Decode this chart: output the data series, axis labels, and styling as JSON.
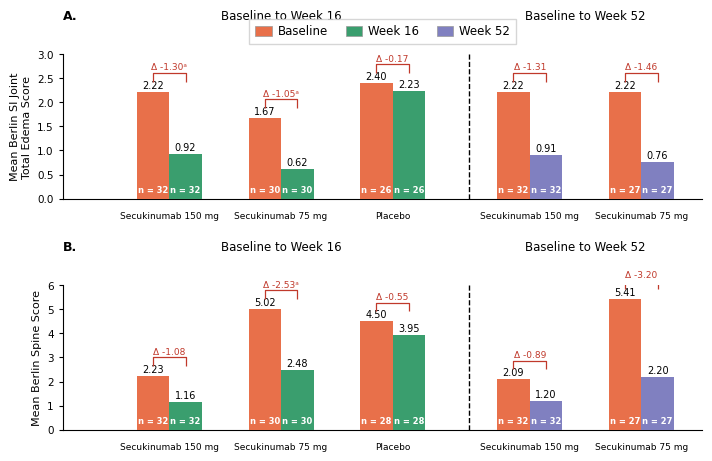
{
  "panel_A": {
    "title_left": "Baseline to Week 16",
    "title_right": "Baseline to Week 52",
    "ylabel": "Mean Berlin SI Joint\nTotal Edema Score",
    "ylim": [
      0,
      3.0
    ],
    "yticks": [
      0.0,
      0.5,
      1.0,
      1.5,
      2.0,
      2.5,
      3.0
    ],
    "groups_left": [
      {
        "label": "Secukinumab 150 mg",
        "baseline": 2.22,
        "week_val": 0.92,
        "n_baseline": 32,
        "n_week": 32,
        "week_color": "week16",
        "delta": "Δ -1.30ᵃ",
        "delta_sig": true
      },
      {
        "label": "Secukinumab 75 mg",
        "baseline": 1.67,
        "week_val": 0.62,
        "n_baseline": 30,
        "n_week": 30,
        "week_color": "week16",
        "delta": "Δ -1.05ᵃ",
        "delta_sig": true
      },
      {
        "label": "Placebo",
        "baseline": 2.4,
        "week_val": 2.23,
        "n_baseline": 26,
        "n_week": 26,
        "week_color": "week16",
        "delta": "Δ -0.17",
        "delta_sig": false
      }
    ],
    "groups_right": [
      {
        "label": "Secukinumab 150 mg",
        "baseline": 2.22,
        "week_val": 0.91,
        "n_baseline": 32,
        "n_week": 32,
        "week_color": "week52",
        "delta": "Δ -1.31",
        "delta_sig": false
      },
      {
        "label": "Secukinumab 75 mg",
        "baseline": 2.22,
        "week_val": 0.76,
        "n_baseline": 27,
        "n_week": 27,
        "week_color": "week52",
        "delta": "Δ -1.46",
        "delta_sig": false
      }
    ]
  },
  "panel_B": {
    "title_left": "Baseline to Week 16",
    "title_right": "Baseline to Week 52",
    "ylabel": "Mean Berlin Spine Score",
    "ylim": [
      0,
      6.0
    ],
    "yticks": [
      0,
      1,
      2,
      3,
      4,
      5,
      6
    ],
    "groups_left": [
      {
        "label": "Secukinumab 150 mg",
        "baseline": 2.23,
        "week_val": 1.16,
        "n_baseline": 32,
        "n_week": 32,
        "week_color": "week16",
        "delta": "Δ -1.08",
        "delta_sig": false
      },
      {
        "label": "Secukinumab 75 mg",
        "baseline": 5.02,
        "week_val": 2.48,
        "n_baseline": 30,
        "n_week": 30,
        "week_color": "week16",
        "delta": "Δ -2.53ᵃ",
        "delta_sig": true
      },
      {
        "label": "Placebo",
        "baseline": 4.5,
        "week_val": 3.95,
        "n_baseline": 28,
        "n_week": 28,
        "week_color": "week16",
        "delta": "Δ -0.55",
        "delta_sig": false
      }
    ],
    "groups_right": [
      {
        "label": "Secukinumab 150 mg",
        "baseline": 2.09,
        "week_val": 1.2,
        "n_baseline": 32,
        "n_week": 32,
        "week_color": "week52",
        "delta": "Δ -0.89",
        "delta_sig": false
      },
      {
        "label": "Secukinumab 75 mg",
        "baseline": 5.41,
        "week_val": 2.2,
        "n_baseline": 27,
        "n_week": 27,
        "week_color": "week52",
        "delta": "Δ -3.20",
        "delta_sig": false
      }
    ]
  },
  "colors": {
    "baseline": "#E8704A",
    "week16": "#3A9E6E",
    "week52": "#8080C0"
  },
  "legend_labels": [
    "Baseline",
    "Week 16",
    "Week 52"
  ]
}
